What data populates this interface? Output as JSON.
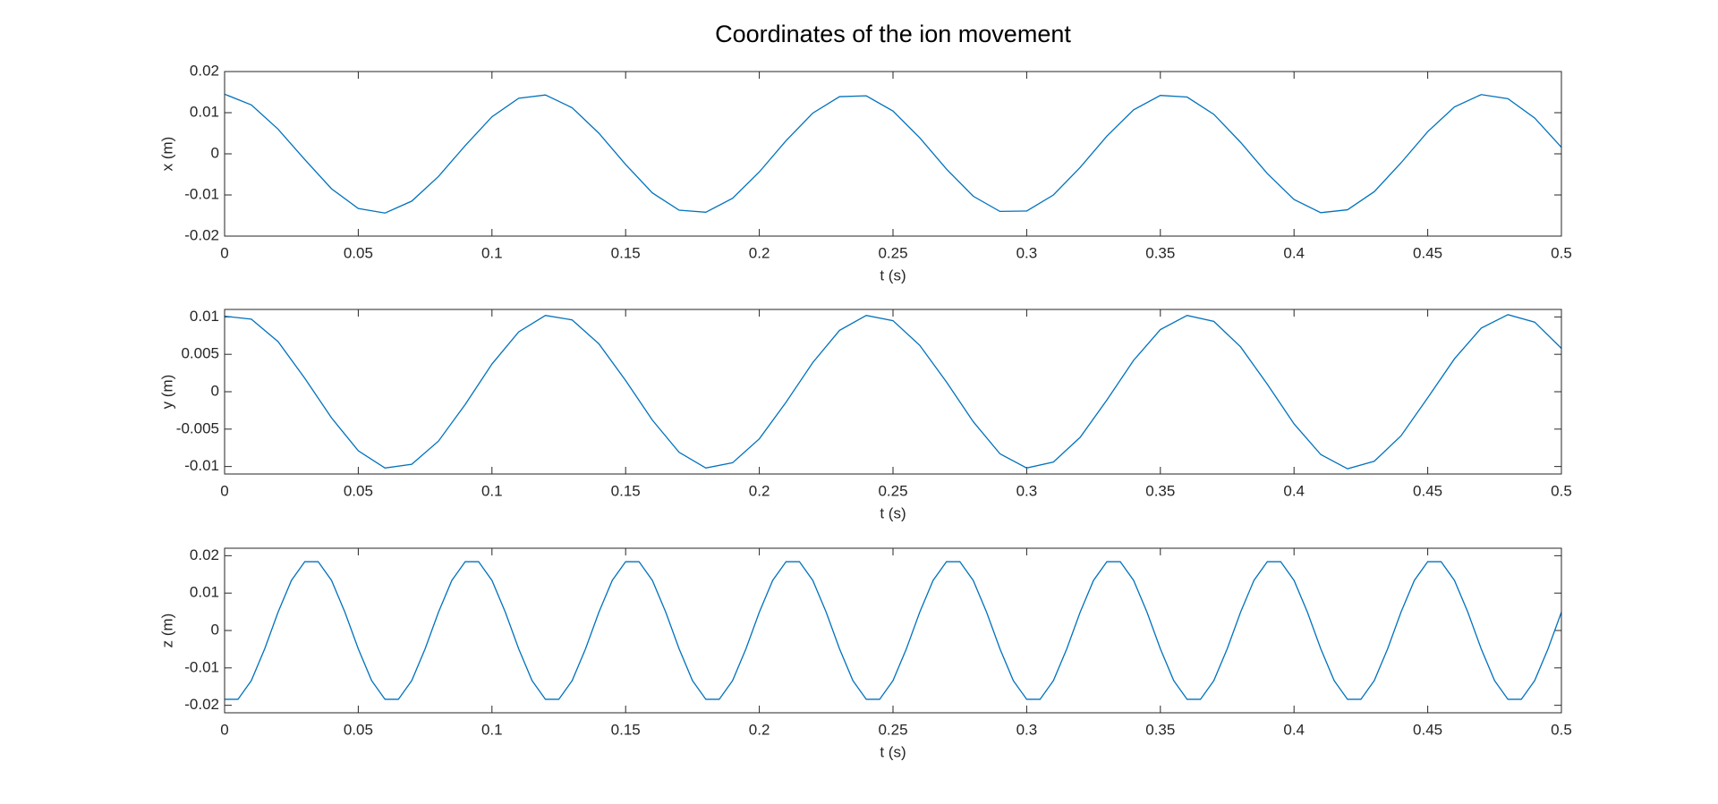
{
  "title": "Coordinates of the ion movement",
  "chart_data": [
    {
      "type": "line",
      "xlabel": "t (s)",
      "ylabel": "x (m)",
      "xlim": [
        0,
        0.5
      ],
      "ylim": [
        -0.02,
        0.02
      ],
      "xticks": [
        0,
        0.05,
        0.1,
        0.15,
        0.2,
        0.25,
        0.3,
        0.35,
        0.4,
        0.45,
        0.5
      ],
      "yticks": [
        -0.02,
        -0.01,
        0,
        0.01,
        0.02
      ],
      "x": [
        0,
        0.01,
        0.02,
        0.03,
        0.04,
        0.05,
        0.06,
        0.07,
        0.08,
        0.09,
        0.1,
        0.11,
        0.12,
        0.13,
        0.14,
        0.15,
        0.16,
        0.17,
        0.18,
        0.19,
        0.2,
        0.21,
        0.22,
        0.23,
        0.24,
        0.25,
        0.26,
        0.27,
        0.28,
        0.29,
        0.3,
        0.31,
        0.32,
        0.33,
        0.34,
        0.35,
        0.36,
        0.37,
        0.38,
        0.39,
        0.4,
        0.41,
        0.42,
        0.43,
        0.44,
        0.45,
        0.46,
        0.47,
        0.48,
        0.49,
        0.5
      ],
      "series": [
        {
          "color": "#0072bd",
          "values": [
            0.0145,
            0.0119,
            0.006,
            -0.0014,
            -0.0085,
            -0.0133,
            -0.0144,
            -0.0115,
            -0.0055,
            0.002,
            0.009,
            0.0135,
            0.0143,
            0.0112,
            0.005,
            -0.0026,
            -0.0095,
            -0.0137,
            -0.0142,
            -0.0108,
            -0.0044,
            0.0032,
            0.0099,
            0.0139,
            0.0141,
            0.0104,
            0.0039,
            -0.0037,
            -0.0103,
            -0.014,
            -0.0139,
            -0.01,
            -0.0033,
            0.0043,
            0.0107,
            0.0142,
            0.0138,
            0.0096,
            0.0028,
            -0.0048,
            -0.0111,
            -0.0143,
            -0.0136,
            -0.0092,
            -0.0022,
            0.0054,
            0.0114,
            0.0144,
            0.0134,
            0.0087,
            0.0016
          ]
        }
      ]
    },
    {
      "type": "line",
      "xlabel": "t (s)",
      "ylabel": "y (m)",
      "xlim": [
        0,
        0.5
      ],
      "ylim": [
        -0.011,
        0.011
      ],
      "xticks": [
        0,
        0.05,
        0.1,
        0.15,
        0.2,
        0.25,
        0.3,
        0.35,
        0.4,
        0.45,
        0.5
      ],
      "yticks": [
        -0.01,
        -0.005,
        0,
        0.005,
        0.01
      ],
      "x": [
        0,
        0.01,
        0.02,
        0.03,
        0.04,
        0.05,
        0.06,
        0.07,
        0.08,
        0.09,
        0.1,
        0.11,
        0.12,
        0.13,
        0.14,
        0.15,
        0.16,
        0.17,
        0.18,
        0.19,
        0.2,
        0.21,
        0.22,
        0.23,
        0.24,
        0.25,
        0.26,
        0.27,
        0.28,
        0.29,
        0.3,
        0.31,
        0.32,
        0.33,
        0.34,
        0.35,
        0.36,
        0.37,
        0.38,
        0.39,
        0.4,
        0.41,
        0.42,
        0.43,
        0.44,
        0.45,
        0.46,
        0.47,
        0.48,
        0.49,
        0.5
      ],
      "series": [
        {
          "color": "#0072bd",
          "values": [
            0.0101,
            0.0097,
            0.0067,
            0.0018,
            -0.0035,
            -0.0079,
            -0.0102,
            -0.0097,
            -0.0066,
            -0.0017,
            0.0037,
            0.008,
            0.0102,
            0.0096,
            0.0064,
            0.0015,
            -0.0038,
            -0.0081,
            -0.0102,
            -0.0095,
            -0.0063,
            -0.0014,
            0.0039,
            0.0082,
            0.0102,
            0.0095,
            0.0062,
            0.0013,
            -0.004,
            -0.0083,
            -0.0102,
            -0.0094,
            -0.0061,
            -0.0011,
            0.0042,
            0.0083,
            0.0102,
            0.0094,
            0.006,
            0.001,
            -0.0043,
            -0.0084,
            -0.0103,
            -0.0093,
            -0.0059,
            -0.0008,
            0.0044,
            0.0085,
            0.0103,
            0.0093,
            0.0058
          ]
        }
      ]
    },
    {
      "type": "line",
      "xlabel": "t (s)",
      "ylabel": "z (m)",
      "xlim": [
        0,
        0.5
      ],
      "ylim": [
        -0.022,
        0.022
      ],
      "xticks": [
        0,
        0.05,
        0.1,
        0.15,
        0.2,
        0.25,
        0.3,
        0.35,
        0.4,
        0.45,
        0.5
      ],
      "yticks": [
        -0.02,
        -0.01,
        0,
        0.01,
        0.02
      ],
      "x": [
        0,
        0.005,
        0.01,
        0.015,
        0.02,
        0.025,
        0.03,
        0.035,
        0.04,
        0.045,
        0.05,
        0.055,
        0.06,
        0.065,
        0.07,
        0.075,
        0.08,
        0.085,
        0.09,
        0.095,
        0.1,
        0.105,
        0.11,
        0.115,
        0.12,
        0.125,
        0.13,
        0.135,
        0.14,
        0.145,
        0.15,
        0.155,
        0.16,
        0.165,
        0.17,
        0.175,
        0.18,
        0.185,
        0.19,
        0.195,
        0.2,
        0.205,
        0.21,
        0.215,
        0.22,
        0.225,
        0.23,
        0.235,
        0.24,
        0.245,
        0.25,
        0.255,
        0.26,
        0.265,
        0.27,
        0.275,
        0.28,
        0.285,
        0.29,
        0.295,
        0.3,
        0.305,
        0.31,
        0.315,
        0.32,
        0.325,
        0.33,
        0.335,
        0.34,
        0.345,
        0.35,
        0.355,
        0.36,
        0.365,
        0.37,
        0.375,
        0.38,
        0.385,
        0.39,
        0.395,
        0.4,
        0.405,
        0.41,
        0.415,
        0.42,
        0.425,
        0.43,
        0.435,
        0.44,
        0.445,
        0.45,
        0.455,
        0.46,
        0.465,
        0.47,
        0.475,
        0.48,
        0.485,
        0.49,
        0.495,
        0.5
      ],
      "series": [
        {
          "color": "#0072bd",
          "values": [
            -0.0184,
            -0.0184,
            -0.0134,
            -0.0049,
            0.0049,
            0.0134,
            0.0184,
            0.0184,
            0.0134,
            0.0049,
            -0.0049,
            -0.0134,
            -0.0184,
            -0.0184,
            -0.0134,
            -0.0049,
            0.0049,
            0.0134,
            0.0184,
            0.0184,
            0.0134,
            0.0049,
            -0.0049,
            -0.0134,
            -0.0184,
            -0.0184,
            -0.0134,
            -0.0049,
            0.0049,
            0.0134,
            0.0184,
            0.0184,
            0.0134,
            0.0049,
            -0.0049,
            -0.0134,
            -0.0184,
            -0.0184,
            -0.0134,
            -0.0049,
            0.0049,
            0.0134,
            0.0184,
            0.0184,
            0.0134,
            0.0049,
            -0.0049,
            -0.0134,
            -0.0184,
            -0.0184,
            -0.0134,
            -0.0049,
            0.0049,
            0.0134,
            0.0184,
            0.0184,
            0.0134,
            0.0049,
            -0.0049,
            -0.0134,
            -0.0184,
            -0.0184,
            -0.0134,
            -0.0049,
            0.0049,
            0.0134,
            0.0184,
            0.0184,
            0.0134,
            0.0049,
            -0.0049,
            -0.0134,
            -0.0184,
            -0.0184,
            -0.0134,
            -0.0049,
            0.0049,
            0.0134,
            0.0184,
            0.0184,
            0.0134,
            0.0049,
            -0.0049,
            -0.0134,
            -0.0184,
            -0.0184,
            -0.0134,
            -0.0049,
            0.0049,
            0.0134,
            0.0184,
            0.0184,
            0.0134,
            0.0049,
            -0.0049,
            -0.0134,
            -0.0184,
            -0.0184,
            -0.0134,
            -0.0049,
            0.0049
          ]
        }
      ]
    }
  ]
}
